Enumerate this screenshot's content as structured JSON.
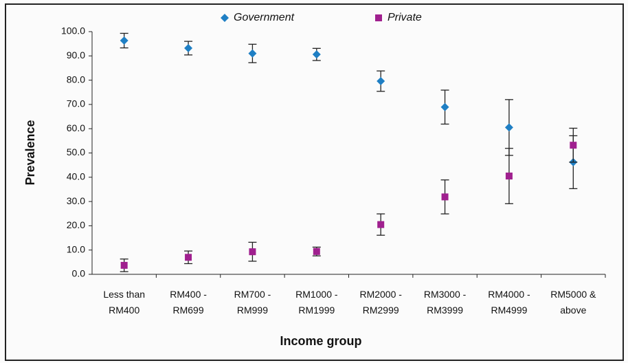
{
  "chart_data": {
    "type": "scatter",
    "xlabel": "Income group",
    "ylabel": "Prevalence",
    "categories": [
      "Less than RM400",
      "RM400 - RM699",
      "RM700 - RM999",
      "RM1000 - RM1999",
      "RM2000 - RM2999",
      "RM3000 - RM3999",
      "RM4000 - RM4999",
      "RM5000 & above"
    ],
    "series": [
      {
        "name": "Government",
        "color": "#1f7fc4",
        "marker": "diamond",
        "values": [
          96.3,
          93.2,
          91.0,
          90.6,
          79.6,
          68.9,
          60.5,
          46.2
        ],
        "errors": [
          3.0,
          2.8,
          3.8,
          2.5,
          4.2,
          7.0,
          11.5,
          10.9
        ]
      },
      {
        "name": "Private",
        "color": "#a0208f",
        "marker": "square",
        "values": [
          3.7,
          7.0,
          9.3,
          9.4,
          20.5,
          31.9,
          40.5,
          53.2
        ],
        "errors": [
          2.6,
          2.6,
          3.9,
          1.8,
          4.4,
          7.0,
          11.4,
          7.0
        ]
      }
    ],
    "ylim": [
      0,
      100
    ],
    "yticks": [
      {
        "value": 0,
        "label": "0.0"
      },
      {
        "value": 10,
        "label": "10.0"
      },
      {
        "value": 20,
        "label": "20.0"
      },
      {
        "value": 30,
        "label": "30.0"
      },
      {
        "value": 40,
        "label": "40.0"
      },
      {
        "value": 50,
        "label": "50.0"
      },
      {
        "value": 60,
        "label": "60.0"
      },
      {
        "value": 70,
        "label": "70.0"
      },
      {
        "value": 80,
        "label": "80.0"
      },
      {
        "value": 90,
        "label": "90.0"
      },
      {
        "value": 100,
        "label": "100.0"
      }
    ]
  }
}
